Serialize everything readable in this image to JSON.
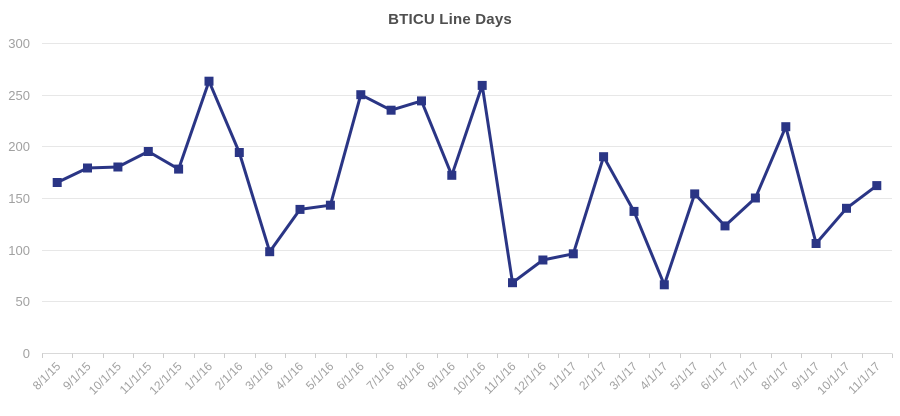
{
  "title": "BTICU Line Days",
  "chart_data": {
    "type": "line",
    "title": "BTICU Line Days",
    "categories": [
      "8/1/15",
      "9/1/15",
      "10/1/15",
      "11/1/15",
      "12/1/15",
      "1/1/16",
      "2/1/16",
      "3/1/16",
      "4/1/16",
      "5/1/16",
      "6/1/16",
      "7/1/16",
      "8/1/16",
      "9/1/16",
      "10/1/16",
      "11/1/16",
      "12/1/16",
      "1/1/17",
      "2/1/17",
      "3/1/17",
      "4/1/17",
      "5/1/17",
      "6/1/17",
      "7/1/17",
      "8/1/17",
      "9/1/17",
      "10/1/17",
      "11/1/17"
    ],
    "series": [
      {
        "name": "BTICU Line Days",
        "values": [
          165,
          179,
          180,
          195,
          178,
          263,
          194,
          98,
          139,
          143,
          250,
          235,
          244,
          172,
          259,
          68,
          90,
          96,
          190,
          137,
          66,
          154,
          123,
          150,
          219,
          106,
          140,
          162
        ]
      }
    ],
    "xlabel": "",
    "ylabel": "",
    "ylim": [
      0,
      300
    ],
    "yticks": [
      0,
      50,
      100,
      150,
      200,
      250,
      300
    ],
    "grid": true,
    "legend": "none",
    "marker_shape": "square",
    "colors": {
      "line": "#2a3585",
      "marker": "#2a3585",
      "title_text": "#4f4f4f",
      "axis_text": "#a1a1a1",
      "gridline": "#e7e7e7",
      "axis_line": "#d9d9d9",
      "tick_mark": "#cccccc",
      "background": "#ffffff"
    }
  }
}
